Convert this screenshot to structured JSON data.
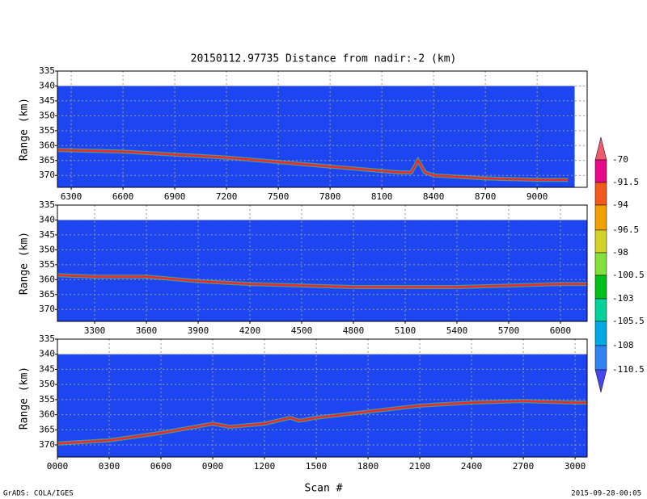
{
  "title": "20150112.97735   Distance from nadir:-2 (km)",
  "xlabel": "Scan #",
  "footer_left": "GrADS: COLA/IGES",
  "footer_right": "2015-09-28-00:05",
  "colorbar": {
    "levels": [
      -70,
      -91.5,
      -94,
      -96.5,
      -98,
      -100.5,
      -103,
      -105.5,
      -108,
      -110.5
    ],
    "colors": [
      "#f05a6e",
      "#e8088a",
      "#f05a1e",
      "#f0a000",
      "#d2d228",
      "#84e03c",
      "#00c01e",
      "#00d29a",
      "#00aae6",
      "#3282f0",
      "#4646f0"
    ]
  },
  "chart_data": [
    {
      "type": "line",
      "ylabel": "Range (km)",
      "xlim": [
        6220,
        9290
      ],
      "ylim": [
        335,
        374
      ],
      "y_inverted": true,
      "grid": true,
      "background": "#1e46f0",
      "xticks": [
        6300,
        6600,
        6900,
        7200,
        7500,
        7800,
        8100,
        8400,
        8700,
        9000
      ],
      "yticks": [
        335,
        340,
        345,
        350,
        355,
        360,
        365,
        370
      ],
      "series": [
        {
          "color": "#f02828",
          "x": [
            6220,
            6600,
            7200,
            7800,
            8200,
            8270,
            8310,
            8350,
            8400,
            8700,
            9000,
            9180
          ],
          "values": [
            361.5,
            362,
            364,
            367,
            369,
            369,
            365,
            369,
            370,
            371,
            371.5,
            371.5
          ]
        }
      ]
    },
    {
      "type": "line",
      "ylabel": "Range (km)",
      "xlim": [
        3084,
        6155
      ],
      "ylim": [
        335,
        374
      ],
      "y_inverted": true,
      "grid": true,
      "background": "#1e46f0",
      "xticks": [
        3300,
        3600,
        3900,
        4200,
        4500,
        4800,
        5100,
        5400,
        5700,
        6000
      ],
      "yticks": [
        335,
        340,
        345,
        350,
        355,
        360,
        365,
        370
      ],
      "series": [
        {
          "color": "#f02828",
          "x": [
            3084,
            3300,
            3600,
            3900,
            4200,
            4800,
            5400,
            6000,
            6155
          ],
          "values": [
            358.5,
            359,
            359,
            360.5,
            361.5,
            362.5,
            362.5,
            361.5,
            361.5
          ]
        }
      ]
    },
    {
      "type": "line",
      "ylabel": "Range (km)",
      "xlim": [
        0,
        3070
      ],
      "ylim": [
        335,
        374
      ],
      "y_inverted": true,
      "grid": true,
      "background": "#1e46f0",
      "xticks": [
        {
          "value": 0,
          "label": "0000"
        },
        {
          "value": 300,
          "label": "0300"
        },
        {
          "value": 600,
          "label": "0600"
        },
        {
          "value": 900,
          "label": "0900"
        },
        1200,
        1500,
        1800,
        2100,
        2400,
        2700,
        3000
      ],
      "yticks": [
        335,
        340,
        345,
        350,
        355,
        360,
        365,
        370
      ],
      "series": [
        {
          "color": "#f02828",
          "x": [
            0,
            300,
            600,
            900,
            1000,
            1200,
            1350,
            1400,
            1500,
            1800,
            2100,
            2400,
            2700,
            3000,
            3070
          ],
          "values": [
            369.5,
            368.5,
            366,
            363,
            364,
            363,
            361,
            362,
            361,
            359,
            357,
            356,
            355.5,
            356,
            356
          ]
        }
      ]
    }
  ]
}
